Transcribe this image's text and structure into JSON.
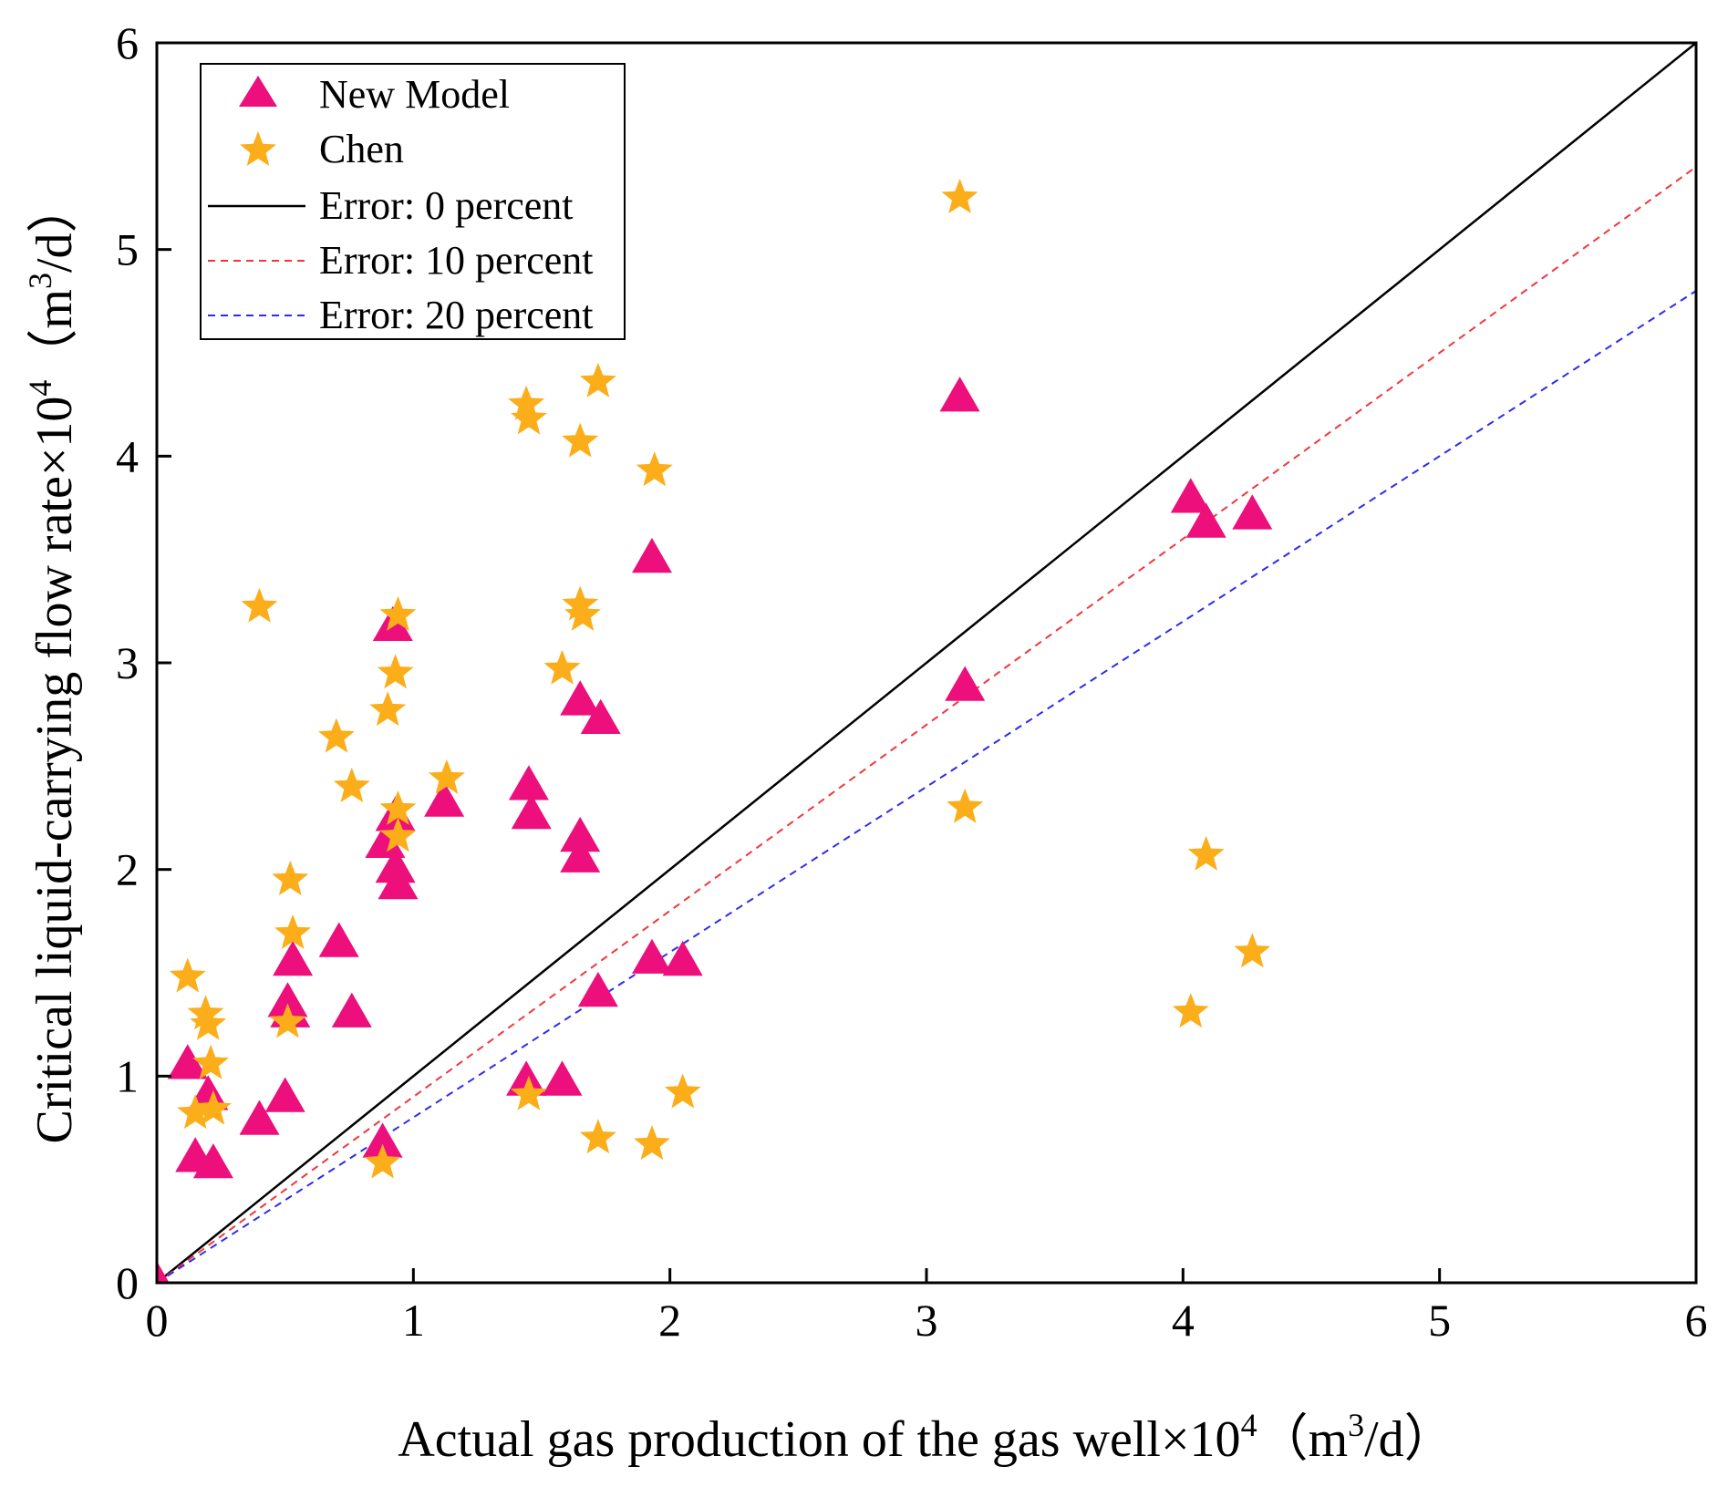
{
  "chart_data": {
    "type": "scatter",
    "title": "",
    "xlabel": {
      "prefix": "Actual gas production of the gas well×10",
      "exp": "4",
      "unit_open": "（m",
      "unit_exp": "3",
      "unit_close": "/d）"
    },
    "ylabel": {
      "prefix": "Critical liquid-carrying flow rate×10",
      "exp": "4",
      "unit_open": "（m",
      "unit_exp": "3",
      "unit_close": "/d）"
    },
    "xlim": [
      0,
      6
    ],
    "ylim": [
      0,
      6
    ],
    "x_ticks": [
      "0",
      "1",
      "2",
      "3",
      "4",
      "5",
      "6"
    ],
    "y_ticks": [
      "0",
      "1",
      "2",
      "3",
      "4",
      "5",
      "6"
    ],
    "legend_position": "top-left",
    "series": [
      {
        "name": "New Model",
        "marker": "triangle",
        "color": "#ec0f7c",
        "points": [
          [
            0.0,
            0.0
          ],
          [
            0.12,
            1.05
          ],
          [
            0.15,
            0.6
          ],
          [
            0.2,
            0.9
          ],
          [
            0.22,
            0.57
          ],
          [
            0.4,
            0.78
          ],
          [
            0.5,
            0.89
          ],
          [
            0.51,
            1.35
          ],
          [
            0.52,
            1.3
          ],
          [
            0.53,
            1.55
          ],
          [
            0.71,
            1.64
          ],
          [
            0.76,
            1.3
          ],
          [
            0.88,
            0.67
          ],
          [
            0.89,
            2.12
          ],
          [
            0.92,
            3.17
          ],
          [
            0.93,
            2.25
          ],
          [
            0.93,
            2.0
          ],
          [
            0.94,
            1.92
          ],
          [
            1.12,
            2.32
          ],
          [
            1.44,
            0.97
          ],
          [
            1.45,
            2.4
          ],
          [
            1.46,
            2.26
          ],
          [
            1.58,
            0.97
          ],
          [
            1.65,
            2.81
          ],
          [
            1.65,
            2.15
          ],
          [
            1.65,
            2.05
          ],
          [
            1.73,
            2.72
          ],
          [
            1.72,
            1.4
          ],
          [
            1.93,
            3.5
          ],
          [
            1.93,
            1.56
          ],
          [
            2.05,
            1.55
          ],
          [
            3.13,
            4.28
          ],
          [
            3.15,
            2.88
          ],
          [
            4.03,
            3.79
          ],
          [
            4.09,
            3.67
          ],
          [
            4.27,
            3.71
          ]
        ]
      },
      {
        "name": "Chen",
        "marker": "star",
        "color": "#fbae19",
        "points": [
          [
            0.12,
            1.48
          ],
          [
            0.15,
            0.82
          ],
          [
            0.19,
            1.3
          ],
          [
            0.2,
            1.25
          ],
          [
            0.21,
            1.06
          ],
          [
            0.22,
            0.84
          ],
          [
            0.4,
            3.27
          ],
          [
            0.51,
            1.26
          ],
          [
            0.52,
            1.95
          ],
          [
            0.53,
            1.69
          ],
          [
            0.7,
            2.64
          ],
          [
            0.76,
            2.4
          ],
          [
            0.88,
            0.58
          ],
          [
            0.9,
            2.77
          ],
          [
            0.93,
            2.95
          ],
          [
            0.94,
            3.23
          ],
          [
            0.94,
            2.29
          ],
          [
            0.94,
            2.16
          ],
          [
            1.13,
            2.44
          ],
          [
            1.44,
            4.25
          ],
          [
            1.45,
            4.18
          ],
          [
            1.45,
            0.91
          ],
          [
            1.58,
            2.97
          ],
          [
            1.65,
            4.07
          ],
          [
            1.65,
            3.28
          ],
          [
            1.66,
            3.23
          ],
          [
            1.72,
            4.36
          ],
          [
            1.72,
            0.7
          ],
          [
            1.94,
            3.93
          ],
          [
            1.93,
            0.67
          ],
          [
            2.05,
            0.92
          ],
          [
            3.13,
            5.25
          ],
          [
            3.15,
            2.3
          ],
          [
            4.03,
            1.31
          ],
          [
            4.09,
            2.07
          ],
          [
            4.27,
            1.6
          ]
        ]
      }
    ],
    "reference_lines": [
      {
        "name": "Error: 0 percent",
        "slope": 1.0,
        "color": "#000000",
        "dash": "solid"
      },
      {
        "name": "Error: 10 percent",
        "slope": 0.9,
        "color": "#f2363a",
        "dash": "dashed"
      },
      {
        "name": "Error: 20 percent",
        "slope": 0.8,
        "color": "#2b2cf0",
        "dash": "dashed"
      }
    ],
    "grid": false
  }
}
